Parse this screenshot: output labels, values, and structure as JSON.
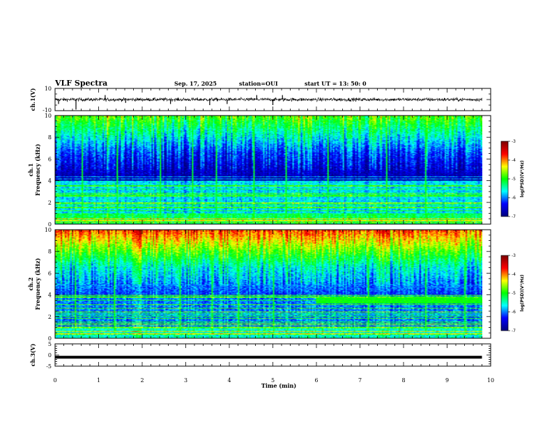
{
  "header": {
    "title": "VLF Spectra",
    "date": "Sep. 17, 2025",
    "station": "station=OUI",
    "start": "start  UT =   13: 50: 0"
  },
  "colors": {
    "dark_blue": "#00007f",
    "blue": "#0000ff",
    "cyan": "#00ffff",
    "green": "#00ff00",
    "yellow": "#ffff00",
    "red": "#ff0000",
    "dark_red": "#7f0000"
  },
  "chart_data": [
    {
      "type": "line",
      "id": "ch1_waveform",
      "ylabel": "ch.1(V)",
      "ylim": [
        -10,
        10
      ],
      "yticks": [
        "10",
        "-10"
      ],
      "xlim": [
        0,
        10
      ],
      "baseline": 0,
      "noise_amplitude": 1.5,
      "spikes": [
        {
          "x": 0.08,
          "y": -4
        },
        {
          "x": 0.48,
          "y": -9
        },
        {
          "x": 1.15,
          "y": 4
        },
        {
          "x": 1.62,
          "y": -3
        },
        {
          "x": 2.65,
          "y": -4
        },
        {
          "x": 3.55,
          "y": -5
        },
        {
          "x": 3.95,
          "y": -4
        },
        {
          "x": 4.63,
          "y": 4
        },
        {
          "x": 5.0,
          "y": -5
        },
        {
          "x": 5.22,
          "y": 4
        }
      ],
      "end_time": 9.8
    },
    {
      "type": "heatmap",
      "id": "ch1_spectrogram",
      "ylabel_line1": "ch.1",
      "ylabel_line2": "Frequency (kHz)",
      "ylim": [
        0,
        10
      ],
      "yticks": [
        "0",
        "2",
        "4",
        "6",
        "8",
        "10"
      ],
      "xlim": [
        0,
        10
      ],
      "end_time": 9.8,
      "low_band_level": -5.7,
      "mid_band_level": -6.8,
      "high_band_level": -4.8,
      "colorbar": {
        "label": "log(PSD)(V²/Hz)",
        "range": [
          -7,
          -3
        ],
        "ticks": [
          "-3",
          "-4",
          "-5",
          "-6",
          "-7"
        ]
      }
    },
    {
      "type": "heatmap",
      "id": "ch2_spectrogram",
      "ylabel_line1": "ch.2",
      "ylabel_line2": "Frequency (kHz)",
      "ylim": [
        0,
        10
      ],
      "yticks": [
        "0",
        "2",
        "4",
        "6",
        "8",
        "10"
      ],
      "xlim": [
        0,
        10
      ],
      "end_time": 9.8,
      "low_band_level": -6.0,
      "mid_band_level": -6.2,
      "high_band_level": -3.8,
      "band_feature": {
        "t_start": 6.0,
        "t_end": 9.8,
        "f_low": 3.2,
        "f_high": 3.7,
        "level": -5.0
      },
      "colorbar": {
        "label": "log(PSD)(V²/Hz)",
        "range": [
          -7,
          -3
        ],
        "ticks": [
          "-3",
          "-4",
          "-5",
          "-6",
          "-7"
        ]
      }
    },
    {
      "type": "line",
      "id": "ch3_waveform",
      "ylabel": "ch.3(V)",
      "ylim": [
        -5,
        5
      ],
      "yticks": [
        "5",
        "0",
        "-5"
      ],
      "xlim": [
        0,
        10
      ],
      "baseline": -1,
      "end_time": 9.8,
      "xlabel": "Time  (min)",
      "xticks": [
        "0",
        "1",
        "2",
        "3",
        "4",
        "5",
        "6",
        "7",
        "8",
        "9",
        "10"
      ]
    }
  ]
}
